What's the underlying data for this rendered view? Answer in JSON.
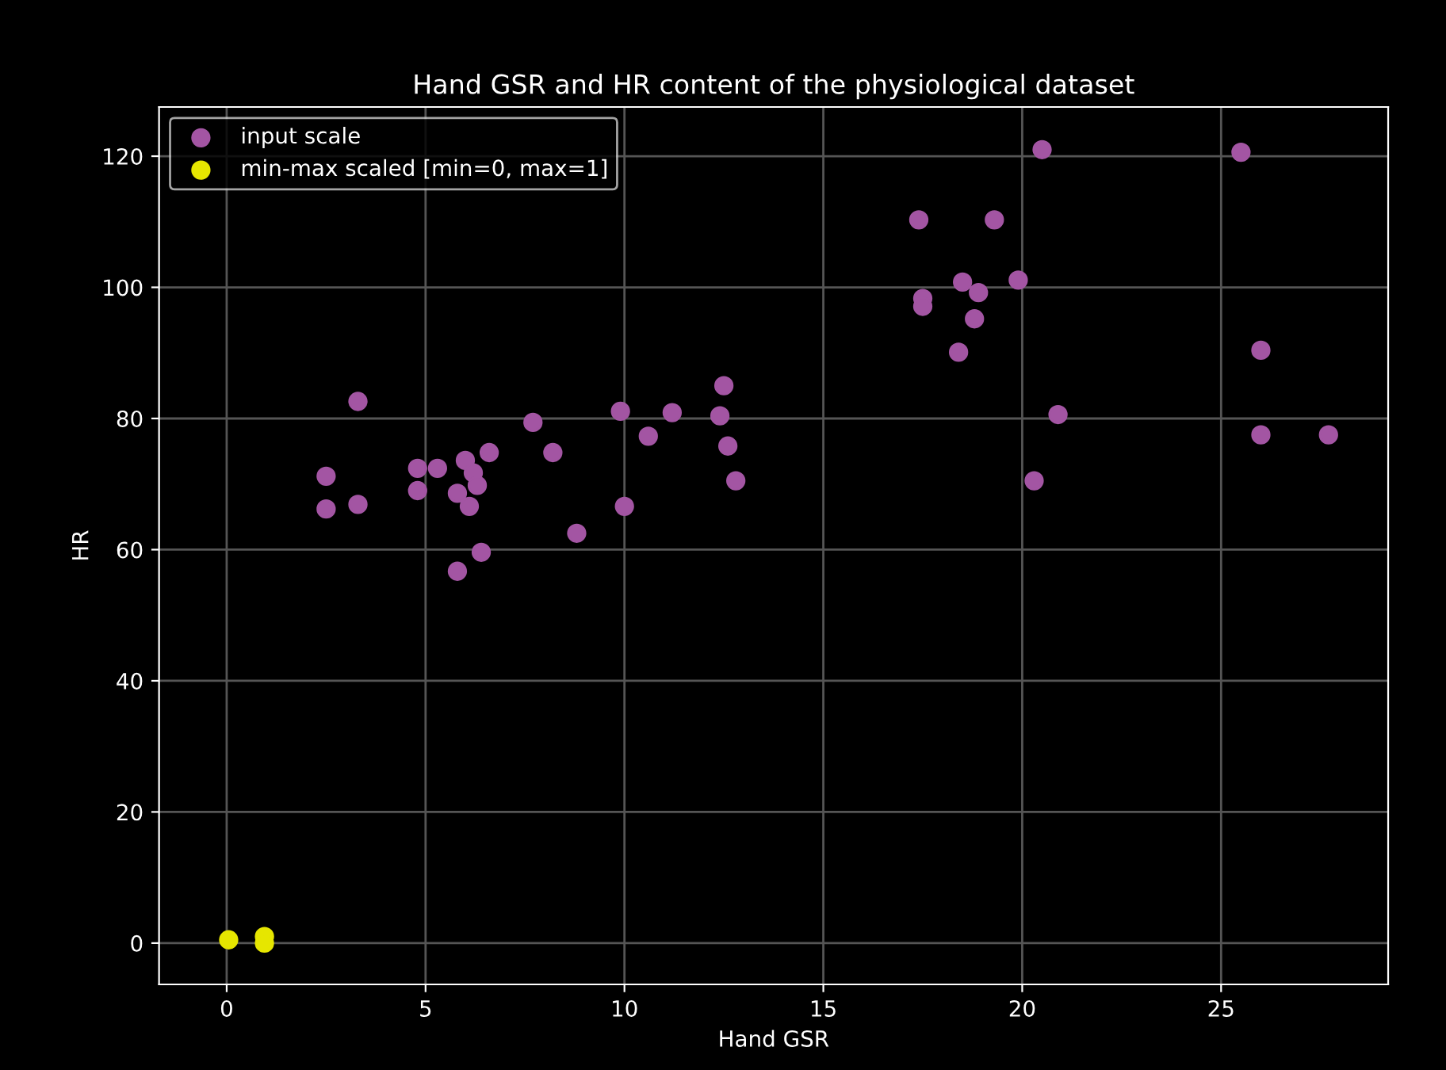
{
  "chart_data": {
    "type": "scatter",
    "title": "Hand GSR and HR content of the physiological dataset",
    "xlabel": "Hand GSR",
    "ylabel": "HR",
    "xlim": [
      -1.7,
      29.2
    ],
    "ylim": [
      -6.3,
      127.5
    ],
    "xticks": [
      0,
      5,
      10,
      15,
      20,
      25
    ],
    "yticks": [
      0,
      20,
      40,
      60,
      80,
      100,
      120
    ],
    "grid": true,
    "legend": "top left",
    "marker": "circle",
    "series": [
      {
        "name": "input scale",
        "color": "#a355a3",
        "x": [
          2.5,
          2.5,
          3.3,
          3.3,
          4.8,
          4.8,
          5.3,
          6.0,
          5.8,
          6.1,
          6.2,
          6.3,
          6.4,
          5.8,
          6.6,
          7.7,
          8.2,
          8.8,
          9.9,
          10.0,
          10.6,
          11.2,
          12.4,
          12.5,
          12.6,
          12.8,
          20.5,
          25.5,
          17.4,
          19.3,
          18.5,
          18.9,
          19.9,
          17.5,
          17.5,
          18.8,
          18.4,
          26.0,
          20.9,
          26.0,
          27.7,
          20.3
        ],
        "values": [
          71.2,
          66.2,
          82.6,
          66.9,
          72.4,
          69.0,
          72.4,
          73.6,
          68.6,
          66.6,
          71.7,
          69.8,
          59.6,
          56.7,
          74.8,
          79.4,
          74.8,
          62.5,
          81.1,
          66.6,
          77.3,
          80.9,
          80.4,
          85.0,
          75.8,
          70.5,
          121.0,
          120.6,
          110.3,
          110.3,
          100.8,
          99.2,
          101.1,
          98.3,
          97.1,
          95.2,
          90.1,
          90.4,
          80.6,
          77.5,
          77.5,
          70.5
        ]
      },
      {
        "name": "min-max scaled [min=0, max=1]",
        "color": "#e6e600",
        "x": [
          0.05,
          0.95,
          0.95
        ],
        "values": [
          0.5,
          1.0,
          0.0
        ]
      }
    ]
  }
}
